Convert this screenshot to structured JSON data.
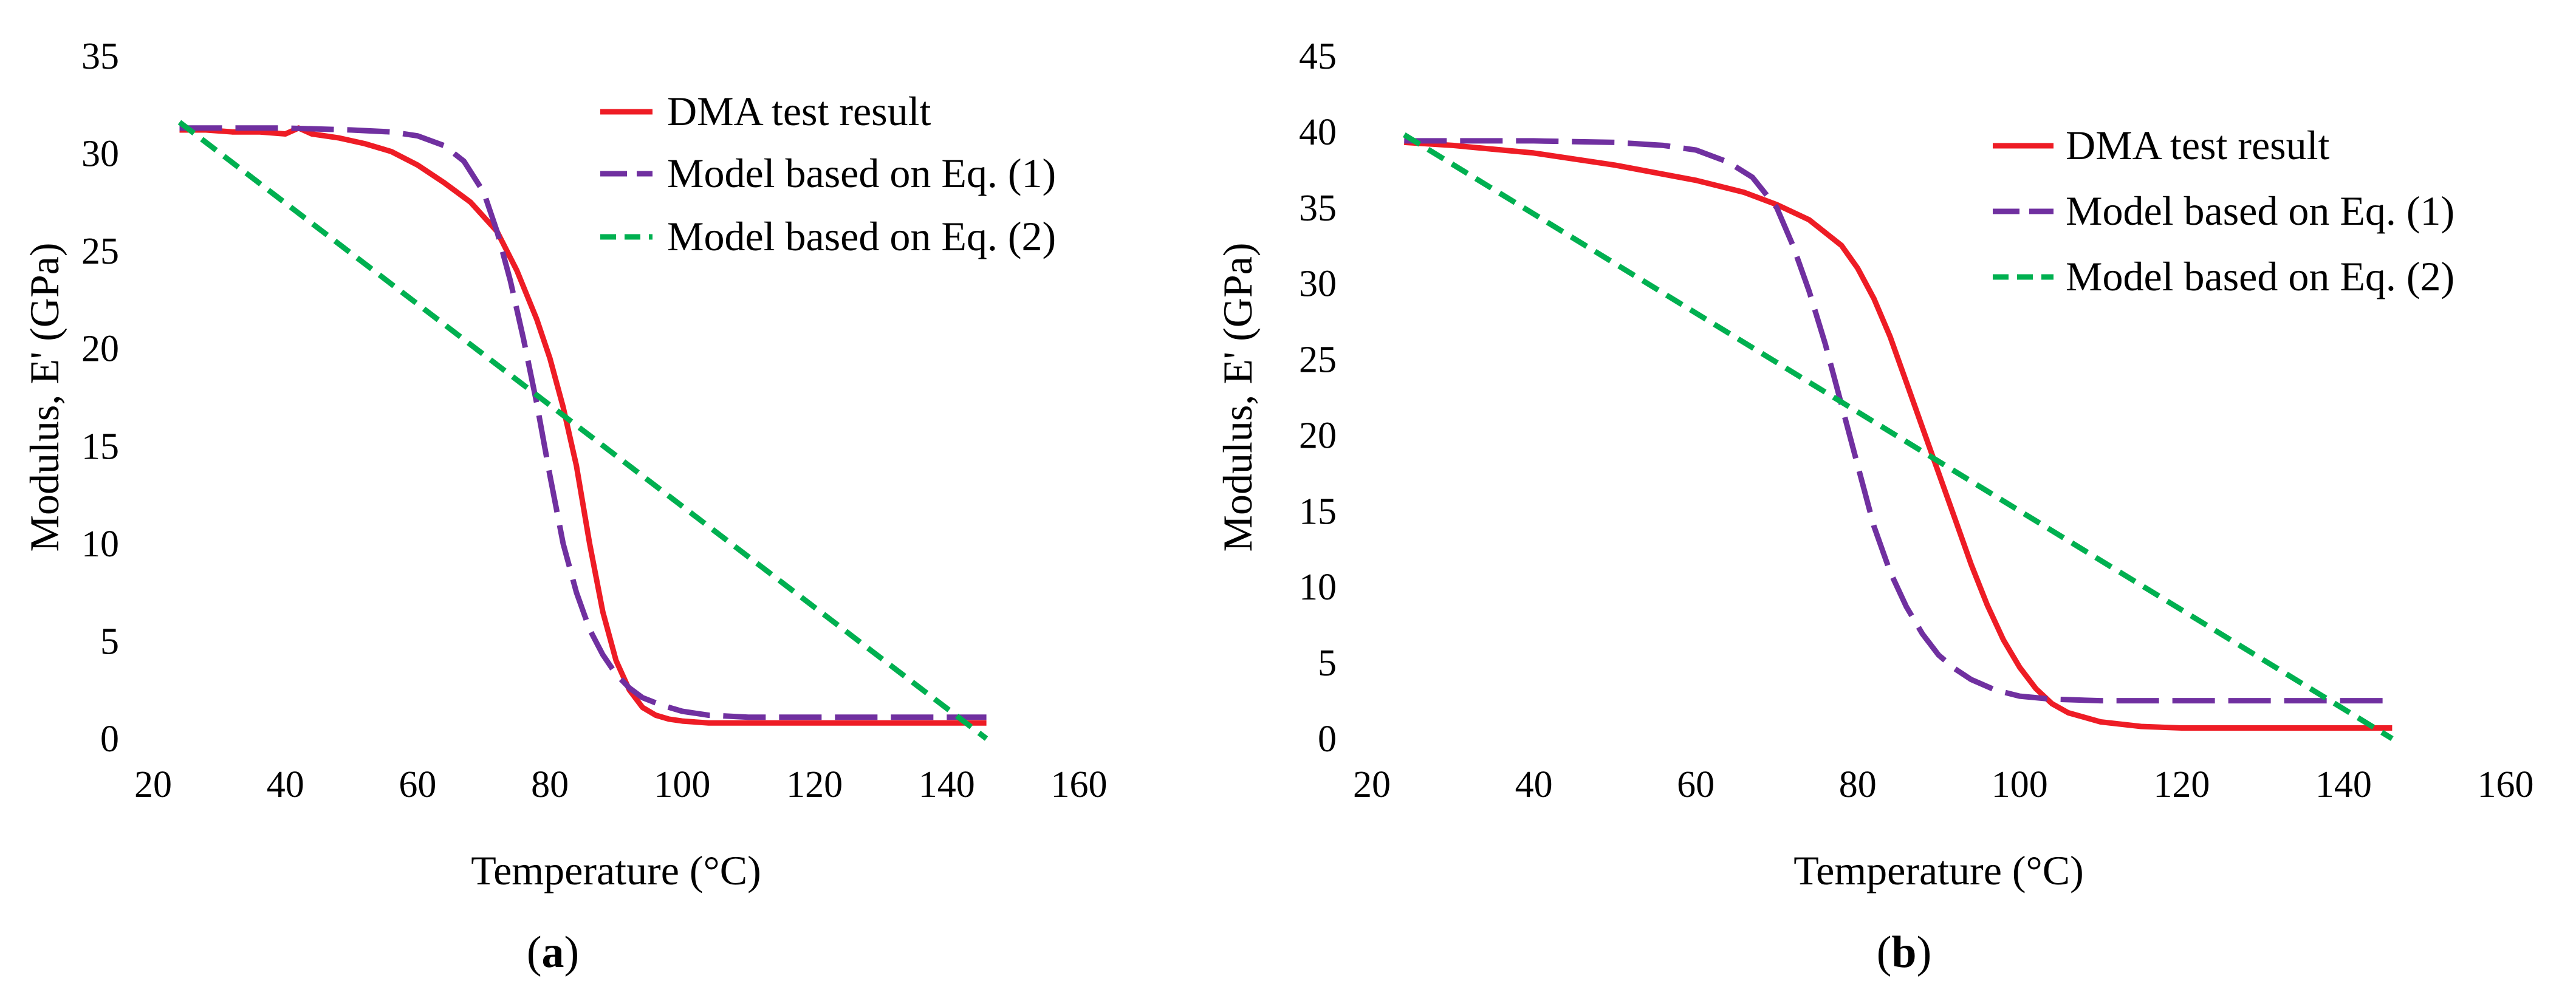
{
  "figure": {
    "panels": [
      {
        "id": "a",
        "caption_open": "(",
        "caption_letter": "a",
        "caption_close": ")"
      },
      {
        "id": "b",
        "caption_open": "(",
        "caption_letter": "b",
        "caption_close": ")"
      }
    ]
  },
  "chart_data": [
    {
      "type": "line",
      "panel": "a",
      "title": "",
      "xlabel": "Temperature (°C)",
      "ylabel": "Modulus, E' (GPa)",
      "xlim": [
        20,
        160
      ],
      "ylim": [
        0,
        35
      ],
      "xticks": [
        20,
        40,
        60,
        80,
        100,
        120,
        140,
        160
      ],
      "yticks": [
        0,
        5,
        10,
        15,
        20,
        25,
        30,
        35
      ],
      "grid": false,
      "legend_position": "top-right",
      "series": [
        {
          "name": "DMA test result",
          "style": "solid",
          "color": "#ee1c25",
          "x": [
            24,
            28,
            32,
            36,
            40,
            42,
            44,
            48,
            52,
            56,
            60,
            64,
            68,
            72,
            75,
            78,
            80,
            82,
            84,
            86,
            88,
            90,
            92,
            94,
            96,
            98,
            100,
            104,
            110,
            120,
            130,
            140,
            146
          ],
          "y": [
            31.2,
            31.2,
            31.1,
            31.1,
            31.0,
            31.3,
            31.0,
            30.8,
            30.5,
            30.1,
            29.4,
            28.5,
            27.5,
            26.0,
            24.0,
            21.5,
            19.5,
            17.0,
            14.0,
            10.0,
            6.5,
            4.0,
            2.5,
            1.6,
            1.2,
            1.0,
            0.9,
            0.8,
            0.8,
            0.8,
            0.8,
            0.8,
            0.8
          ]
        },
        {
          "name": "Model based on Eq. (1)",
          "style": "long-dash",
          "color": "#7030a0",
          "x": [
            24,
            30,
            40,
            50,
            56,
            60,
            64,
            67,
            70,
            72,
            74,
            76,
            78,
            80,
            82,
            84,
            86,
            88,
            90,
            92,
            94,
            97,
            100,
            104,
            110,
            120,
            130,
            140,
            146
          ],
          "y": [
            31.3,
            31.3,
            31.3,
            31.2,
            31.1,
            30.9,
            30.4,
            29.6,
            28.0,
            26.0,
            23.5,
            20.5,
            17.2,
            13.5,
            10.0,
            7.5,
            5.6,
            4.3,
            3.3,
            2.6,
            2.1,
            1.7,
            1.4,
            1.2,
            1.1,
            1.1,
            1.1,
            1.1,
            1.1
          ]
        },
        {
          "name": "Model based on Eq. (2)",
          "style": "short-dash",
          "color": "#00b050",
          "x": [
            24,
            146
          ],
          "y": [
            31.6,
            0
          ]
        }
      ]
    },
    {
      "type": "line",
      "panel": "b",
      "title": "",
      "xlabel": "Temperature (°C)",
      "ylabel": "Modulus, E' (GPa)",
      "xlim": [
        20,
        160
      ],
      "ylim": [
        0,
        45
      ],
      "xticks": [
        20,
        40,
        60,
        80,
        100,
        120,
        140,
        160
      ],
      "yticks": [
        0,
        5,
        10,
        15,
        20,
        25,
        30,
        35,
        40,
        45
      ],
      "grid": false,
      "legend_position": "top-right",
      "series": [
        {
          "name": "DMA test result",
          "style": "solid",
          "color": "#ee1c25",
          "x": [
            24,
            30,
            40,
            50,
            60,
            66,
            70,
            74,
            78,
            80,
            82,
            84,
            86,
            88,
            90,
            92,
            94,
            96,
            98,
            100,
            102,
            104,
            106,
            110,
            115,
            120,
            130,
            140,
            146
          ],
          "y": [
            39.3,
            39.1,
            38.6,
            37.8,
            36.8,
            36.0,
            35.2,
            34.2,
            32.5,
            31.0,
            29.0,
            26.5,
            23.5,
            20.5,
            17.5,
            14.5,
            11.5,
            8.8,
            6.5,
            4.7,
            3.3,
            2.3,
            1.7,
            1.1,
            0.8,
            0.7,
            0.7,
            0.7,
            0.7
          ]
        },
        {
          "name": "Model based on Eq. (1)",
          "style": "long-dash",
          "color": "#7030a0",
          "x": [
            24,
            30,
            40,
            50,
            56,
            60,
            64,
            67,
            70,
            72,
            74,
            76,
            78,
            80,
            82,
            84,
            86,
            88,
            90,
            92,
            94,
            97,
            100,
            104,
            110,
            120,
            130,
            140,
            146
          ],
          "y": [
            39.4,
            39.4,
            39.4,
            39.3,
            39.1,
            38.8,
            38.0,
            37.0,
            35.0,
            32.5,
            29.5,
            26.0,
            22.0,
            18.0,
            14.0,
            11.0,
            8.7,
            6.9,
            5.5,
            4.6,
            3.9,
            3.2,
            2.8,
            2.6,
            2.5,
            2.5,
            2.5,
            2.5,
            2.5
          ]
        },
        {
          "name": "Model based on Eq. (2)",
          "style": "short-dash",
          "color": "#00b050",
          "x": [
            24,
            146
          ],
          "y": [
            39.8,
            0
          ]
        }
      ]
    }
  ]
}
